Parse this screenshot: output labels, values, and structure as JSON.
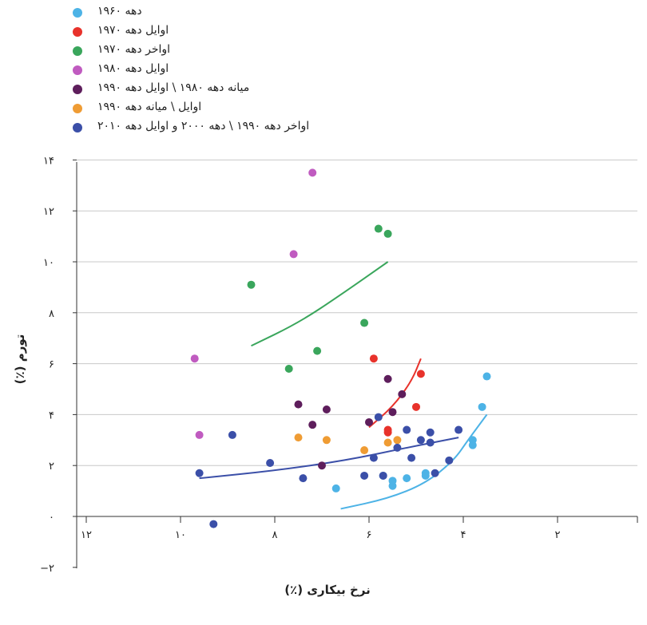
{
  "chart_data": {
    "type": "scatter",
    "xlabel": "نرخ بیکاری (٪)",
    "ylabel": "تورم (٪)",
    "xlim": [
      12,
      0
    ],
    "ylim": [
      -2,
      14
    ],
    "x_reversed": true,
    "x_ticks": [
      {
        "value": 12,
        "label": "۱۲"
      },
      {
        "value": 10,
        "label": "۱۰"
      },
      {
        "value": 8,
        "label": "۸"
      },
      {
        "value": 6,
        "label": "۶"
      },
      {
        "value": 4,
        "label": "۴"
      },
      {
        "value": 2,
        "label": "۲"
      }
    ],
    "y_ticks": [
      {
        "value": -2,
        "label": "−۲"
      },
      {
        "value": 0,
        "label": "۰"
      },
      {
        "value": 2,
        "label": "۲"
      },
      {
        "value": 4,
        "label": "۴"
      },
      {
        "value": 6,
        "label": "۶"
      },
      {
        "value": 8,
        "label": "۸"
      },
      {
        "value": 10,
        "label": "۱۰"
      },
      {
        "value": 12,
        "label": "۱۲"
      },
      {
        "value": 14,
        "label": "۱۴"
      }
    ],
    "grid": "horizontal",
    "legend_position": "top-left",
    "series": [
      {
        "name": "دهه ۱۹۶۰",
        "color": "#4db3e6",
        "points": [
          [
            6.7,
            1.1
          ],
          [
            5.5,
            1.2
          ],
          [
            5.7,
            1.6
          ],
          [
            5.5,
            1.4
          ],
          [
            5.2,
            1.5
          ],
          [
            4.8,
            1.7
          ],
          [
            3.8,
            3.0
          ],
          [
            3.8,
            2.8
          ],
          [
            3.6,
            4.3
          ],
          [
            3.5,
            5.5
          ],
          [
            4.8,
            1.6
          ]
        ],
        "curve": [
          [
            6.6,
            0.3
          ],
          [
            5.6,
            0.7
          ],
          [
            4.8,
            1.3
          ],
          [
            4.2,
            2.2
          ],
          [
            3.9,
            3.0
          ],
          [
            3.5,
            4.0
          ]
        ]
      },
      {
        "name": "اوایل دهه ۱۹۷۰",
        "color": "#e8322b",
        "points": [
          [
            5.9,
            6.2
          ],
          [
            4.9,
            5.6
          ],
          [
            5.0,
            4.3
          ],
          [
            5.6,
            3.3
          ],
          [
            5.6,
            3.4
          ]
        ],
        "curve": [
          [
            6.0,
            3.5
          ],
          [
            5.5,
            4.3
          ],
          [
            5.1,
            5.3
          ],
          [
            4.9,
            6.2
          ]
        ]
      },
      {
        "name": "اواخر دهه ۱۹۷۰",
        "color": "#3aa65c",
        "points": [
          [
            8.5,
            9.1
          ],
          [
            7.7,
            5.8
          ],
          [
            7.1,
            6.5
          ],
          [
            6.1,
            7.6
          ],
          [
            5.8,
            11.3
          ],
          [
            5.6,
            11.1
          ]
        ],
        "curve": [
          [
            8.5,
            6.7
          ],
          [
            7.5,
            7.6
          ],
          [
            6.6,
            8.7
          ],
          [
            5.6,
            10.0
          ]
        ]
      },
      {
        "name": "اوایل دهه ۱۹۸۰",
        "color": "#c05bc0",
        "points": [
          [
            7.2,
            13.5
          ],
          [
            7.6,
            10.3
          ],
          [
            9.7,
            6.2
          ],
          [
            9.6,
            3.2
          ]
        ]
      },
      {
        "name": "میانه دهه ۱۹۸۰ \\ اوایل دهه ۱۹۹۰",
        "color": "#5e1e5c",
        "points": [
          [
            7.5,
            4.4
          ],
          [
            7.2,
            3.6
          ],
          [
            6.9,
            4.2
          ],
          [
            6.0,
            3.7
          ],
          [
            5.6,
            5.4
          ],
          [
            5.5,
            4.1
          ],
          [
            5.3,
            4.8
          ],
          [
            7.0,
            2.0
          ]
        ]
      },
      {
        "name": "اوایل \\ میانه دهه ۱۹۹۰",
        "color": "#ef9c34",
        "points": [
          [
            7.5,
            3.1
          ],
          [
            6.9,
            3.0
          ],
          [
            6.1,
            2.6
          ],
          [
            5.6,
            2.9
          ],
          [
            5.4,
            3.0
          ]
        ]
      },
      {
        "name": "اواخر دهه ۱۹۹۰ \\ دهه ۲۰۰۰ و اوایل دهه ۲۰۱۰",
        "color": "#3b4fa8",
        "points": [
          [
            9.6,
            1.7
          ],
          [
            8.9,
            3.2
          ],
          [
            8.1,
            2.1
          ],
          [
            7.4,
            1.5
          ],
          [
            6.1,
            1.6
          ],
          [
            5.9,
            2.3
          ],
          [
            5.7,
            1.6
          ],
          [
            5.4,
            2.7
          ],
          [
            5.8,
            3.9
          ],
          [
            5.1,
            2.3
          ],
          [
            5.2,
            3.4
          ],
          [
            4.9,
            3.0
          ],
          [
            4.7,
            3.3
          ],
          [
            4.7,
            2.9
          ],
          [
            4.6,
            1.7
          ],
          [
            4.3,
            2.2
          ],
          [
            4.1,
            3.4
          ],
          [
            9.3,
            -0.3
          ]
        ],
        "curve": [
          [
            9.6,
            1.5
          ],
          [
            8.0,
            1.8
          ],
          [
            6.5,
            2.2
          ],
          [
            5.2,
            2.7
          ],
          [
            4.1,
            3.1
          ]
        ]
      }
    ]
  }
}
